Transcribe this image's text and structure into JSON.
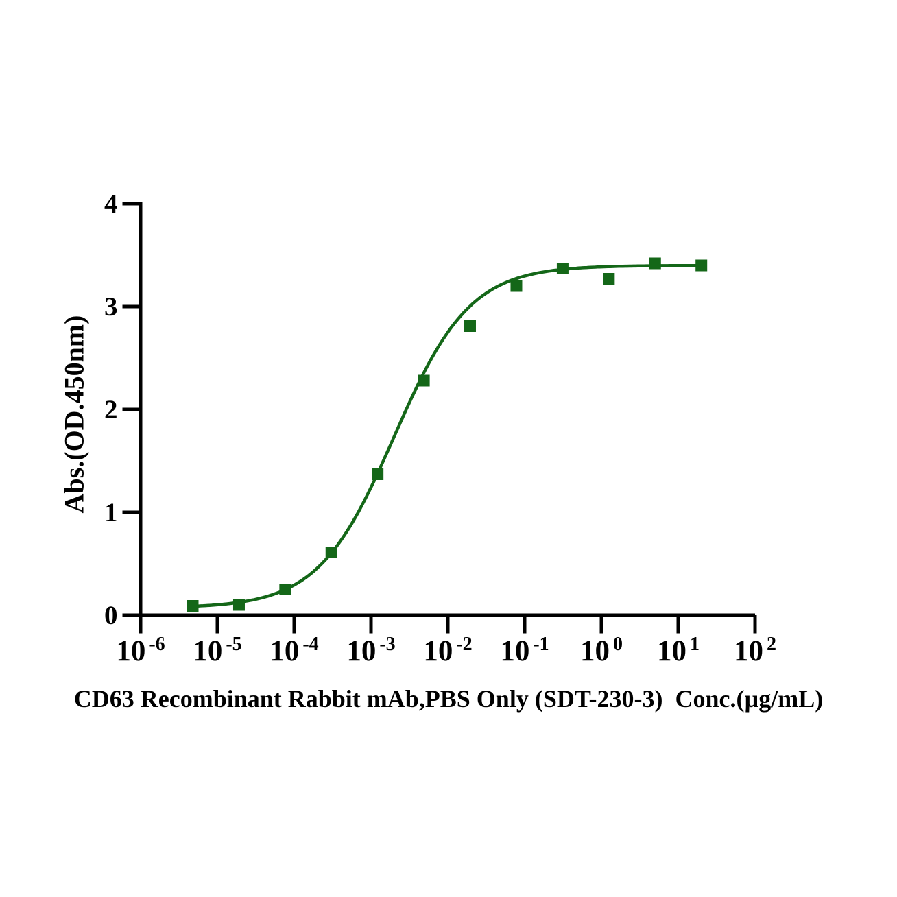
{
  "chart_data": {
    "type": "scatter",
    "title": "",
    "xlabel": "CD63 Recombinant Rabbit mAb,PBS Only (SDT-230-3)  Conc.(µg/mL)",
    "ylabel": "Abs.(OD.450nm)",
    "x_scale": "log10",
    "x_tick_base": "10",
    "x_tick_exponents": [
      -6,
      -5,
      -4,
      -3,
      -2,
      -1,
      0,
      1,
      2
    ],
    "xlim_exponents": [
      -6,
      2
    ],
    "ylim": [
      0,
      4
    ],
    "y_ticks": [
      0,
      1,
      2,
      3,
      4
    ],
    "grid": false,
    "legend": null,
    "axis_color": "#000000",
    "series": [
      {
        "marker": "square",
        "color": "#146718",
        "x": [
          4.77e-06,
          1.91e-05,
          7.63e-05,
          0.000305,
          0.00122,
          0.00488,
          0.0195,
          0.0781,
          0.3125,
          1.25,
          5,
          20
        ],
        "y": [
          0.09,
          0.1,
          0.25,
          0.61,
          1.37,
          2.28,
          2.81,
          3.2,
          3.37,
          3.27,
          3.42,
          3.4
        ]
      }
    ],
    "fit": {
      "model": "4PL sigmoidal",
      "bottom": 0.07,
      "top": 3.4,
      "ec50": 0.002,
      "hill": 0.88
    }
  }
}
